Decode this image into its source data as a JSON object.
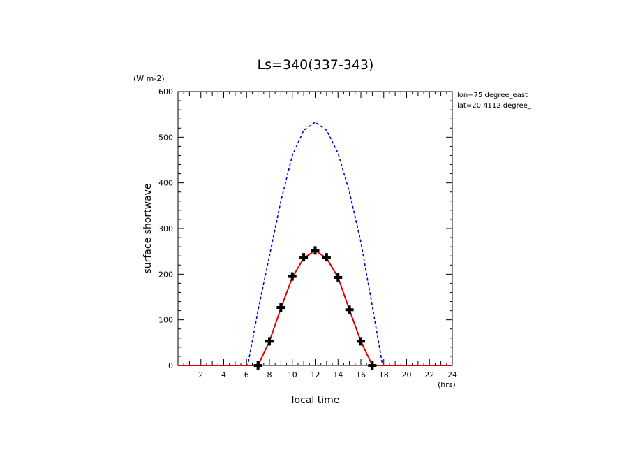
{
  "chart_data": {
    "type": "line",
    "title": "Ls=340(337-343)",
    "xlabel": "local time",
    "ylabel": "surface shortwave",
    "x_unit": "(hrs)",
    "y_unit": "(W m-2)",
    "xlim": [
      0,
      24
    ],
    "ylim": [
      0,
      600
    ],
    "xticks": [
      "2",
      "4",
      "6",
      "8",
      "10",
      "12",
      "14",
      "16",
      "18",
      "20",
      "22",
      "24"
    ],
    "yticks": [
      "0",
      "100",
      "200",
      "300",
      "400",
      "500",
      "600"
    ],
    "annotations": [
      "lon=75 degree_east",
      "lat=20.4112 degree_"
    ],
    "grid": false,
    "series": [
      {
        "style": "dashed",
        "color": "#0000cc",
        "x": [
          0,
          1,
          2,
          3,
          4,
          5,
          6,
          6.1,
          7,
          8,
          9,
          10,
          11,
          12,
          13,
          14,
          15,
          16,
          17,
          17.9,
          18,
          19,
          20,
          21,
          22,
          23,
          24
        ],
        "values": [
          0,
          0,
          0,
          0,
          0,
          0,
          0,
          0,
          120,
          240,
          360,
          460,
          515,
          533,
          515,
          465,
          380,
          270,
          130,
          0,
          0,
          0,
          0,
          0,
          0,
          0,
          0
        ]
      },
      {
        "style": "solid",
        "color": "#dd0000",
        "x": [
          0,
          1,
          2,
          3,
          4,
          5,
          6,
          7,
          8,
          9,
          10,
          11,
          12,
          13,
          14,
          15,
          16,
          17,
          18,
          19,
          20,
          21,
          22,
          23,
          24
        ],
        "values": [
          0,
          0,
          0,
          0,
          0,
          0,
          0,
          0,
          53,
          125,
          193,
          235,
          252,
          235,
          193,
          122,
          53,
          0,
          0,
          0,
          0,
          0,
          0,
          0,
          0
        ]
      },
      {
        "style": "markers",
        "color": "#000000",
        "x": [
          7,
          8,
          9,
          10,
          11,
          12,
          13,
          14,
          15,
          16,
          17
        ],
        "values": [
          0,
          53,
          127,
          195,
          237,
          252,
          237,
          193,
          122,
          53,
          0
        ]
      }
    ]
  }
}
